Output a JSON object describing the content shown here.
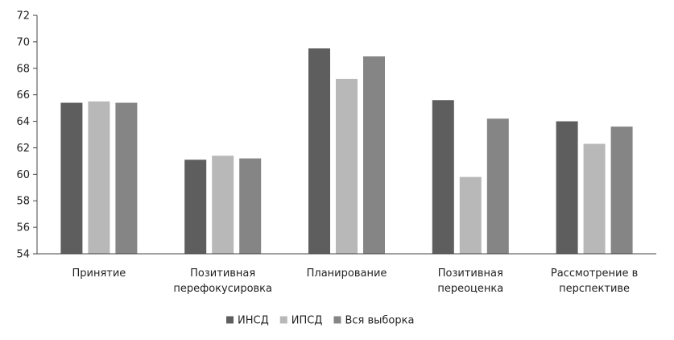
{
  "chart_data": {
    "type": "bar",
    "categories": [
      [
        "Принятие"
      ],
      [
        "Позитивная",
        "перефокусировка"
      ],
      [
        "Планирование"
      ],
      [
        "Позитивная",
        "переоценка"
      ],
      [
        "Рассмотрение в",
        "перспективе"
      ]
    ],
    "series": [
      {
        "name": "ИНСД",
        "color": "#5e5e5e",
        "values": [
          65.4,
          61.1,
          69.5,
          65.6,
          64.0
        ]
      },
      {
        "name": "ИПСД",
        "color": "#b8b8b8",
        "values": [
          65.5,
          61.4,
          67.2,
          59.8,
          62.3
        ]
      },
      {
        "name": "Вся выборка",
        "color": "#858585",
        "values": [
          65.4,
          61.2,
          68.9,
          64.2,
          63.6
        ]
      }
    ],
    "ylim": [
      54,
      72
    ],
    "yticks": [
      54,
      56,
      58,
      60,
      62,
      64,
      66,
      68,
      70,
      72
    ],
    "grid": false,
    "legend_position": "bottom",
    "title": "",
    "xlabel": "",
    "ylabel": ""
  }
}
